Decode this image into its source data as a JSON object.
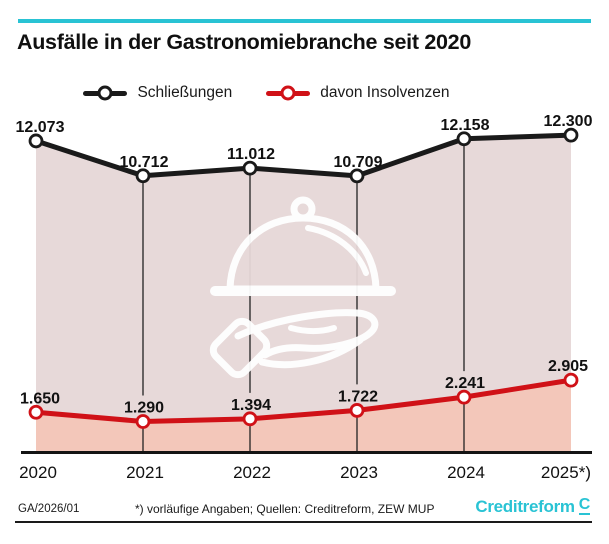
{
  "header": {
    "title": "Ausfälle in der Gastronomiebranche seit 2020"
  },
  "legend": [
    {
      "label": "Schließungen",
      "color": "#1a1a1a"
    },
    {
      "label": "davon Insolvenzen",
      "color": "#d01117"
    }
  ],
  "chart_data": {
    "type": "line",
    "title": "Ausfälle in der Gastronomiebranche seit 2020",
    "categories": [
      "2020",
      "2021",
      "2022",
      "2023",
      "2024",
      "2025*)"
    ],
    "series": [
      {
        "name": "Schließungen",
        "color": "#1a1a1a",
        "values": [
          12073,
          10712,
          11012,
          10709,
          12158,
          12300
        ],
        "labels": [
          "12.073",
          "10.712",
          "11.012",
          "10.709",
          "12.158",
          "12.300"
        ]
      },
      {
        "name": "davon Insolvenzen",
        "color": "#d01117",
        "values": [
          1650,
          1290,
          1394,
          1722,
          2241,
          2905
        ],
        "labels": [
          "1.650",
          "1.290",
          "1.394",
          "1.722",
          "2.241",
          "2.905"
        ]
      }
    ],
    "grid": "vertical-only",
    "legend_position": "top",
    "marker": "open-circle",
    "watermark": "cloche-hand-icon",
    "area_fill_between_series": true
  },
  "footer": {
    "left": "GA/2026/01",
    "note": "*) vorläufige Angaben; Quellen: Creditreform, ZEW MUP",
    "brand": "Creditreform",
    "brand_icon": "creditreform-c-icon"
  },
  "colors": {
    "teal": "#29c3d4",
    "black_line": "#1a1a1a",
    "red_line": "#d01117",
    "area_upper": "#e7d9d9",
    "area_lower": "#f3c7ba",
    "marker_fill": "#ffffff",
    "gridline": "#222222",
    "axis": "#141414",
    "text": "#111111",
    "watermark_stroke": "#ffffff"
  }
}
